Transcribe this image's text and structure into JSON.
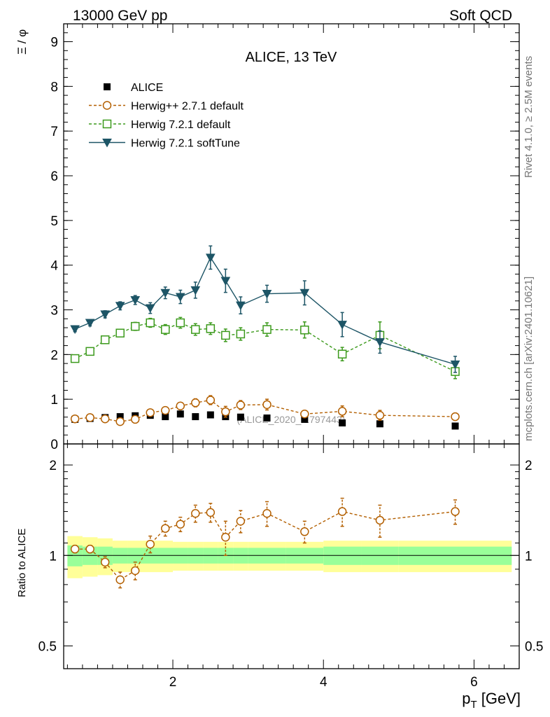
{
  "header": {
    "left": "13000 GeV pp",
    "right": "Soft QCD"
  },
  "side_labels": {
    "rivet": "Rivet 4.1.0, ≥ 2.5M events",
    "source": "mcplots.cern.ch [arXiv:2401.10621]"
  },
  "chart_data": {
    "type": "line",
    "title": "ALICE, 13 TeV",
    "ylabel": "Ξ / φ",
    "xlabel": "p_T [GeV]",
    "ratio_ylabel": "Ratio to ALICE",
    "watermark": "(ALICE_2020_I1797443)",
    "xlim": [
      0.55,
      6.6
    ],
    "ylim": [
      0,
      9.4
    ],
    "ratio_ylim": [
      0.42,
      2.35
    ],
    "xticks": [
      "2",
      "4",
      "6"
    ],
    "yticks": [
      "0",
      "1",
      "2",
      "3",
      "4",
      "5",
      "6",
      "7",
      "8",
      "9"
    ],
    "ratio_yticks": [
      "0.5",
      "1",
      "2"
    ],
    "x": [
      0.7,
      0.9,
      1.1,
      1.3,
      1.5,
      1.7,
      1.9,
      2.1,
      2.3,
      2.5,
      2.7,
      2.9,
      3.25,
      3.75,
      4.25,
      4.75,
      5.75
    ],
    "bin_edges": [
      0.6,
      0.8,
      1.0,
      1.2,
      1.4,
      1.6,
      1.8,
      2.0,
      2.2,
      2.4,
      2.6,
      2.8,
      3.0,
      3.5,
      4.0,
      4.5,
      5.0,
      6.5
    ],
    "data": {
      "name": "ALICE",
      "values": [
        0.55,
        0.57,
        0.59,
        0.61,
        0.63,
        0.64,
        0.61,
        0.67,
        0.61,
        0.65,
        0.61,
        0.6,
        0.58,
        0.55,
        0.47,
        0.45,
        0.4
      ],
      "band_inner": [
        0.08,
        0.07,
        0.07,
        0.06,
        0.06,
        0.06,
        0.06,
        0.06,
        0.06,
        0.06,
        0.06,
        0.06,
        0.06,
        0.06,
        0.07,
        0.07,
        0.07
      ],
      "band_outer": [
        0.16,
        0.15,
        0.14,
        0.12,
        0.12,
        0.12,
        0.12,
        0.11,
        0.11,
        0.11,
        0.11,
        0.11,
        0.11,
        0.11,
        0.12,
        0.12,
        0.12
      ]
    },
    "series": [
      {
        "name": "Herwig++ 2.7.1 default",
        "color": "#b35f00",
        "marker": "open-circle",
        "values": [
          0.56,
          0.59,
          0.56,
          0.5,
          0.55,
          0.7,
          0.75,
          0.85,
          0.92,
          0.98,
          0.72,
          0.87,
          0.88,
          0.67,
          0.73,
          0.64,
          0.61
        ],
        "errors": [
          0.03,
          0.03,
          0.04,
          0.04,
          0.05,
          0.06,
          0.07,
          0.07,
          0.09,
          0.1,
          0.12,
          0.1,
          0.12,
          0.08,
          0.12,
          0.11,
          0.08
        ],
        "ratio": [
          1.05,
          1.05,
          0.95,
          0.83,
          0.89,
          1.09,
          1.23,
          1.27,
          1.38,
          1.39,
          1.15,
          1.3,
          1.38,
          1.2,
          1.4,
          1.31,
          1.4
        ],
        "ratio_errors": [
          0.03,
          0.03,
          0.04,
          0.05,
          0.06,
          0.07,
          0.07,
          0.07,
          0.09,
          0.1,
          0.15,
          0.11,
          0.13,
          0.1,
          0.15,
          0.16,
          0.13
        ]
      },
      {
        "name": "Herwig 7.2.1 default",
        "color": "#3c9a1c",
        "marker": "open-square",
        "values": [
          1.91,
          2.07,
          2.33,
          2.48,
          2.63,
          2.71,
          2.56,
          2.71,
          2.56,
          2.58,
          2.43,
          2.46,
          2.56,
          2.55,
          2.01,
          2.43,
          1.62
        ],
        "errors": [
          0.05,
          0.06,
          0.07,
          0.08,
          0.09,
          0.1,
          0.11,
          0.12,
          0.13,
          0.13,
          0.14,
          0.14,
          0.15,
          0.18,
          0.15,
          0.3,
          0.16
        ]
      },
      {
        "name": "Herwig 7.2.1 softTune",
        "color": "#1d5566",
        "marker": "filled-triangle-down",
        "values": [
          2.57,
          2.71,
          2.9,
          3.09,
          3.22,
          3.04,
          3.38,
          3.29,
          3.44,
          4.17,
          3.65,
          3.1,
          3.36,
          3.38,
          2.67,
          2.28,
          1.78
        ],
        "errors": [
          0.06,
          0.07,
          0.08,
          0.09,
          0.1,
          0.12,
          0.13,
          0.15,
          0.18,
          0.26,
          0.26,
          0.19,
          0.19,
          0.27,
          0.27,
          0.25,
          0.18
        ]
      }
    ]
  }
}
